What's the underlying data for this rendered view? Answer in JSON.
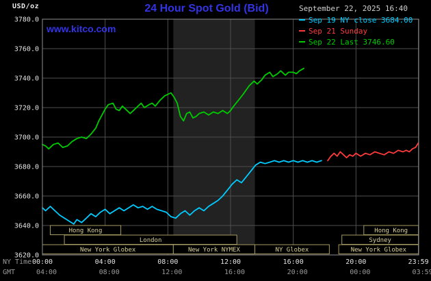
{
  "header": {
    "unit": "USD/oz",
    "title": "24 Hour Spot Gold (Bid)",
    "datetime": "September 22, 2025 16:40",
    "watermark": "www.kitco.com"
  },
  "legend": {
    "items": [
      {
        "label": "Sep 19 NY close 3684.00",
        "color": "#00ccff"
      },
      {
        "label": "Sep 21 Sunday",
        "color": "#ff3b3b"
      },
      {
        "label": "Sep 22 Last 3746.60",
        "color": "#00cc00"
      }
    ]
  },
  "chart_data": {
    "type": "line",
    "title": "24 Hour Spot Gold (Bid)",
    "colors": {
      "background": "#000000",
      "band": "#222222",
      "grid": "#4f4f4f",
      "frame": "#909090",
      "axis_text": "#e3e3e3",
      "muted_text": "#9a9a9a",
      "session_border": "#a89c62",
      "session_text": "#dbd193",
      "accent_blue": "#3333e6"
    },
    "x_axis": {
      "label_ny": "NY Time",
      "label_gmt": "GMT",
      "range_hours": [
        0,
        24
      ],
      "ticks_hours": [
        0,
        4,
        8,
        12,
        16,
        20,
        23.983
      ],
      "ny_labels": [
        "00:00",
        "04:00",
        "08:00",
        "12:00",
        "16:00",
        "20:00",
        "23:59"
      ],
      "gmt_labels": [
        "04:00",
        "08:00",
        "12:00",
        "16:00",
        "20:00",
        "00:00",
        "03:59"
      ]
    },
    "y_axis": {
      "unit": "USD/oz",
      "min": 3620,
      "max": 3780,
      "step": 20,
      "tick_labels": [
        "3780.0",
        "3760.0",
        "3740.0",
        "3720.0",
        "3700.0",
        "3680.0",
        "3660.0",
        "3640.0",
        "3620.0"
      ]
    },
    "shaded_band_hours": [
      8.35,
      13.55
    ],
    "series": [
      {
        "name": "Sep 19 NY close",
        "color": "#00ccff",
        "close_value": 3684.0,
        "points": [
          [
            0,
            3652
          ],
          [
            0.2,
            3650
          ],
          [
            0.5,
            3653
          ],
          [
            0.8,
            3650
          ],
          [
            1.1,
            3647
          ],
          [
            1.4,
            3645
          ],
          [
            1.7,
            3643
          ],
          [
            2.0,
            3641
          ],
          [
            2.2,
            3644
          ],
          [
            2.5,
            3642
          ],
          [
            2.8,
            3645
          ],
          [
            3.1,
            3648
          ],
          [
            3.4,
            3646
          ],
          [
            3.7,
            3649
          ],
          [
            4.0,
            3651
          ],
          [
            4.3,
            3648
          ],
          [
            4.6,
            3650
          ],
          [
            4.9,
            3652
          ],
          [
            5.2,
            3650
          ],
          [
            5.5,
            3652
          ],
          [
            5.8,
            3654
          ],
          [
            6.1,
            3652
          ],
          [
            6.4,
            3653
          ],
          [
            6.7,
            3651
          ],
          [
            7.0,
            3653
          ],
          [
            7.3,
            3651
          ],
          [
            7.6,
            3650
          ],
          [
            7.9,
            3649
          ],
          [
            8.2,
            3646
          ],
          [
            8.5,
            3645
          ],
          [
            8.8,
            3648
          ],
          [
            9.1,
            3650
          ],
          [
            9.4,
            3647
          ],
          [
            9.7,
            3650
          ],
          [
            10.0,
            3652
          ],
          [
            10.3,
            3650
          ],
          [
            10.6,
            3653
          ],
          [
            10.9,
            3655
          ],
          [
            11.2,
            3657
          ],
          [
            11.5,
            3660
          ],
          [
            11.8,
            3664
          ],
          [
            12.1,
            3668
          ],
          [
            12.4,
            3671
          ],
          [
            12.7,
            3669
          ],
          [
            13.0,
            3673
          ],
          [
            13.3,
            3677
          ],
          [
            13.6,
            3681
          ],
          [
            13.9,
            3683
          ],
          [
            14.2,
            3682
          ],
          [
            14.5,
            3683
          ],
          [
            14.8,
            3684
          ],
          [
            15.1,
            3683
          ],
          [
            15.4,
            3684
          ],
          [
            15.7,
            3683
          ],
          [
            16.0,
            3684
          ],
          [
            16.3,
            3683
          ],
          [
            16.6,
            3684
          ],
          [
            16.9,
            3683
          ],
          [
            17.2,
            3684
          ],
          [
            17.5,
            3683
          ],
          [
            17.8,
            3684
          ]
        ]
      },
      {
        "name": "Sep 21 Sunday",
        "color": "#ff3b3b",
        "points": [
          [
            18.2,
            3684
          ],
          [
            18.4,
            3687
          ],
          [
            18.6,
            3689
          ],
          [
            18.8,
            3687
          ],
          [
            19.0,
            3690
          ],
          [
            19.2,
            3688
          ],
          [
            19.4,
            3686
          ],
          [
            19.6,
            3688
          ],
          [
            19.8,
            3687
          ],
          [
            20.0,
            3689
          ],
          [
            20.3,
            3687
          ],
          [
            20.6,
            3689
          ],
          [
            20.9,
            3688
          ],
          [
            21.2,
            3690
          ],
          [
            21.5,
            3689
          ],
          [
            21.8,
            3688
          ],
          [
            22.1,
            3690
          ],
          [
            22.4,
            3689
          ],
          [
            22.7,
            3691
          ],
          [
            23.0,
            3690
          ],
          [
            23.2,
            3691
          ],
          [
            23.4,
            3690
          ],
          [
            23.6,
            3692
          ],
          [
            23.8,
            3693
          ],
          [
            23.98,
            3696
          ]
        ]
      },
      {
        "name": "Sep 22 Last",
        "color": "#00cc00",
        "last_value": 3746.6,
        "points": [
          [
            0,
            3695
          ],
          [
            0.2,
            3694
          ],
          [
            0.4,
            3692
          ],
          [
            0.7,
            3695
          ],
          [
            1.0,
            3696
          ],
          [
            1.3,
            3693
          ],
          [
            1.6,
            3694
          ],
          [
            1.9,
            3697
          ],
          [
            2.2,
            3699
          ],
          [
            2.5,
            3700
          ],
          [
            2.8,
            3699
          ],
          [
            3.1,
            3702
          ],
          [
            3.4,
            3706
          ],
          [
            3.6,
            3711
          ],
          [
            3.8,
            3715
          ],
          [
            4.0,
            3719
          ],
          [
            4.2,
            3722
          ],
          [
            4.5,
            3723
          ],
          [
            4.7,
            3719
          ],
          [
            4.9,
            3718
          ],
          [
            5.1,
            3721
          ],
          [
            5.4,
            3718
          ],
          [
            5.6,
            3716
          ],
          [
            5.9,
            3719
          ],
          [
            6.1,
            3721
          ],
          [
            6.3,
            3723
          ],
          [
            6.5,
            3720
          ],
          [
            6.8,
            3722
          ],
          [
            7.0,
            3723
          ],
          [
            7.2,
            3721
          ],
          [
            7.5,
            3725
          ],
          [
            7.8,
            3728
          ],
          [
            8.0,
            3729
          ],
          [
            8.2,
            3730
          ],
          [
            8.4,
            3727
          ],
          [
            8.6,
            3723
          ],
          [
            8.8,
            3714
          ],
          [
            9.0,
            3711
          ],
          [
            9.2,
            3716
          ],
          [
            9.4,
            3717
          ],
          [
            9.6,
            3713
          ],
          [
            9.8,
            3714
          ],
          [
            10.0,
            3716
          ],
          [
            10.3,
            3717
          ],
          [
            10.6,
            3715
          ],
          [
            10.9,
            3717
          ],
          [
            11.2,
            3716
          ],
          [
            11.5,
            3718
          ],
          [
            11.8,
            3716
          ],
          [
            12.0,
            3718
          ],
          [
            12.2,
            3721
          ],
          [
            12.5,
            3725
          ],
          [
            12.8,
            3729
          ],
          [
            13.0,
            3732
          ],
          [
            13.2,
            3735
          ],
          [
            13.5,
            3738
          ],
          [
            13.7,
            3736
          ],
          [
            14.0,
            3739
          ],
          [
            14.2,
            3742
          ],
          [
            14.5,
            3744
          ],
          [
            14.7,
            3741
          ],
          [
            15.0,
            3743
          ],
          [
            15.2,
            3745
          ],
          [
            15.5,
            3742
          ],
          [
            15.7,
            3744
          ],
          [
            16.0,
            3744
          ],
          [
            16.2,
            3743
          ],
          [
            16.4,
            3745
          ],
          [
            16.67,
            3746.6
          ]
        ]
      }
    ],
    "sessions": [
      {
        "row": 0,
        "start": 0.5,
        "end": 5.0,
        "label": "Hong Kong"
      },
      {
        "row": 0,
        "start": 20.5,
        "end": 23.983,
        "label": "Hong Kong"
      },
      {
        "row": 1,
        "start": 1.4,
        "end": 12.4,
        "label": "London"
      },
      {
        "row": 1,
        "start": 19.1,
        "end": 23.983,
        "label": "Sydney"
      },
      {
        "row": 2,
        "start": 0.0,
        "end": 8.35,
        "label": "New York Globex"
      },
      {
        "row": 2,
        "start": 8.35,
        "end": 13.55,
        "label": "New York NYMEX"
      },
      {
        "row": 2,
        "start": 13.55,
        "end": 18.3,
        "label": "NY Globex"
      },
      {
        "row": 2,
        "start": 18.9,
        "end": 23.983,
        "label": "New York Globex"
      }
    ]
  }
}
